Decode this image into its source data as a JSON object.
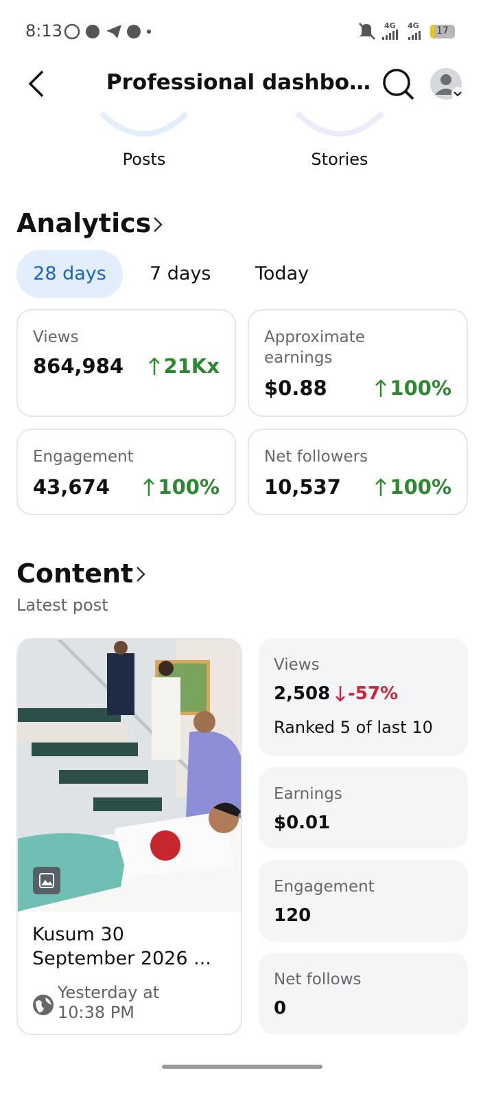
{
  "status_bar": {
    "time": "8:13",
    "network": [
      "4G",
      "4G"
    ],
    "battery": "17"
  },
  "header": {
    "title": "Professional dashbo…"
  },
  "overview_tabs": [
    "Posts",
    "Stories"
  ],
  "analytics": {
    "title": "Analytics",
    "periods": [
      "28 days",
      "7 days",
      "Today"
    ],
    "cards": [
      {
        "label": "Approximate earnings",
        "value": "$0.88",
        "change": "100%"
      },
      {
        "label": "Views",
        "value": "864,984",
        "change": "21Kx"
      },
      {
        "label": "Engagement",
        "value": "43,674",
        "change": "100%"
      },
      {
        "label": "Net followers",
        "value": "10,537",
        "change": "100%"
      }
    ]
  },
  "content": {
    "title": "Content",
    "subtitle": "Latest post",
    "post": {
      "title": "Kusum 30 September 2026 ...",
      "time": "Yesterday at 10:38 PM"
    },
    "stats": [
      {
        "label": "Views",
        "value": "2,508",
        "change": "-57%",
        "note": "Ranked 5 of last 10"
      },
      {
        "label": "Earnings",
        "value": "$0.01"
      },
      {
        "label": "Engagement",
        "value": "120"
      },
      {
        "label": "Net follows",
        "value": "0"
      }
    ]
  }
}
